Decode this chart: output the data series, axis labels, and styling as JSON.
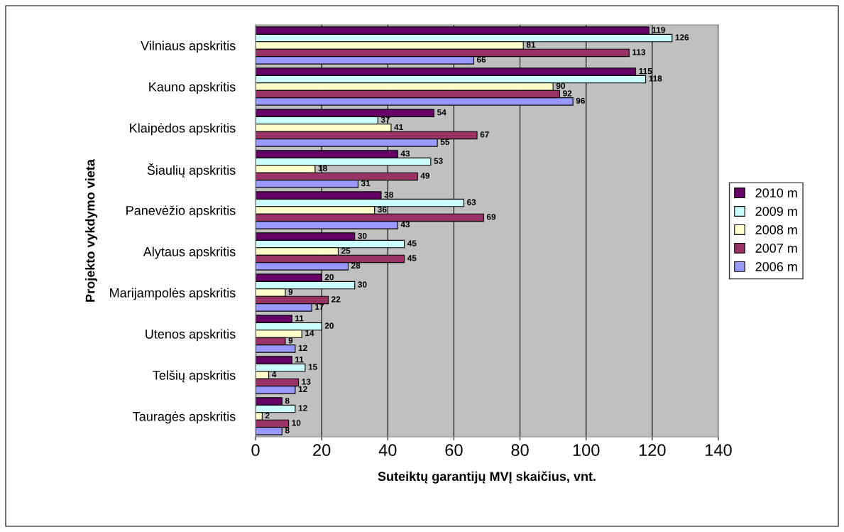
{
  "chart_data": {
    "type": "bar",
    "orientation": "horizontal",
    "xlabel": "Suteiktų garantijų MVĮ skaičius, vnt.",
    "ylabel": "Projekto vykdymo vieta",
    "categories": [
      "Vilniaus apskritis",
      "Kauno apskritis",
      "Klaipėdos apskritis",
      "Šiaulių apskritis",
      "Panevėžio apskritis",
      "Alytaus apskritis",
      "Marijampolės apskritis",
      "Utenos apskritis",
      "Telšių apskritis",
      "Tauragės apskritis"
    ],
    "series": [
      {
        "name": "2010 m",
        "color": "#660066",
        "values": [
          119,
          115,
          54,
          43,
          38,
          30,
          20,
          11,
          11,
          8
        ]
      },
      {
        "name": "2009 m",
        "color": "#ccffff",
        "values": [
          126,
          118,
          37,
          53,
          63,
          45,
          30,
          20,
          15,
          12
        ]
      },
      {
        "name": "2008 m",
        "color": "#ffffcc",
        "values": [
          81,
          90,
          41,
          18,
          36,
          25,
          9,
          14,
          4,
          2
        ]
      },
      {
        "name": "2007 m",
        "color": "#993366",
        "values": [
          113,
          92,
          67,
          49,
          69,
          45,
          22,
          9,
          13,
          10
        ]
      },
      {
        "name": "2006 m",
        "color": "#9999ff",
        "values": [
          66,
          96,
          55,
          31,
          43,
          28,
          17,
          12,
          12,
          8
        ]
      }
    ],
    "xlim": [
      0,
      140
    ],
    "xticks": [
      0,
      20,
      40,
      60,
      80,
      100,
      120,
      140
    ],
    "grid": "x",
    "legend": "right",
    "data_labels": true
  }
}
